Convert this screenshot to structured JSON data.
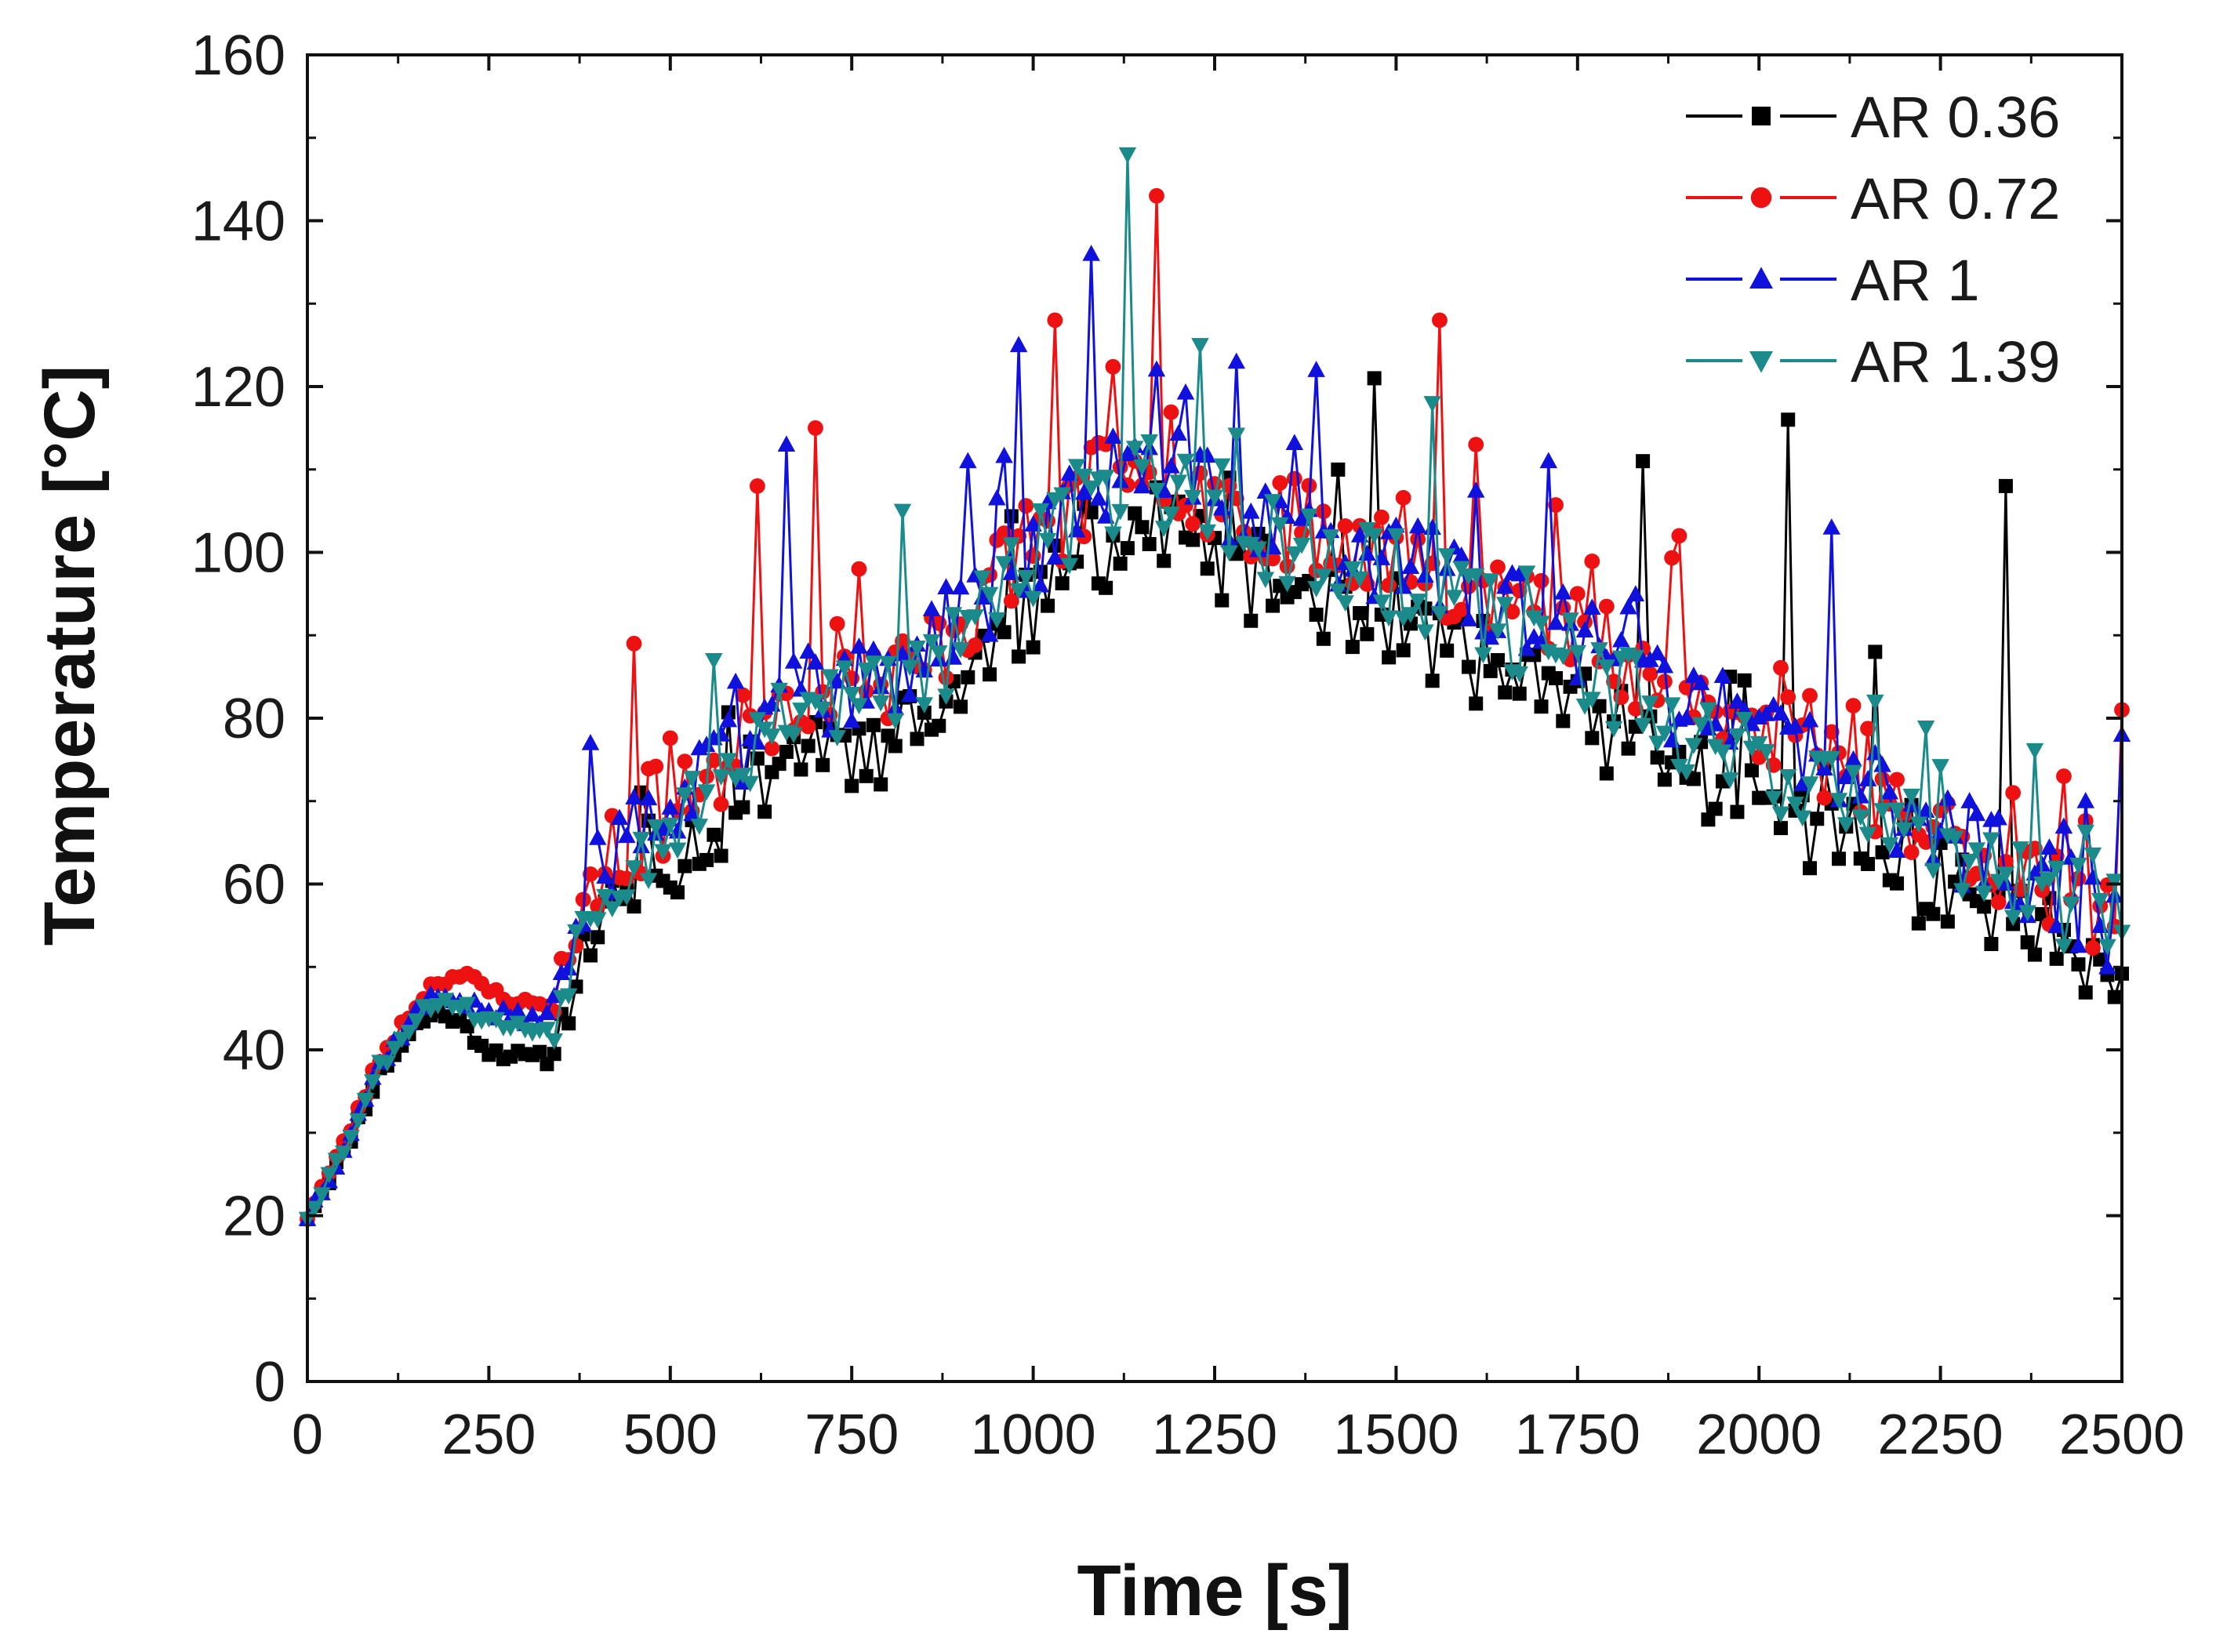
{
  "chart_data": {
    "type": "line",
    "title": "",
    "xlabel": "Time [s]",
    "ylabel": "Temperature [°C]",
    "xlim": [
      0,
      2500
    ],
    "ylim": [
      0,
      160
    ],
    "xticks": [
      0,
      250,
      500,
      750,
      1000,
      1250,
      1500,
      1750,
      2000,
      2250,
      2500
    ],
    "yticks": [
      0,
      20,
      40,
      60,
      80,
      100,
      120,
      140,
      160
    ],
    "xtick_labels": [
      "0",
      "250",
      "500",
      "750",
      "1000",
      "1250",
      "1500",
      "1750",
      "2000",
      "2250",
      "2500"
    ],
    "ytick_labels": [
      "0",
      "20",
      "40",
      "60",
      "80",
      "100",
      "120",
      "140",
      "160"
    ],
    "grid": false,
    "legend_position": "top-right",
    "sample_interval_s": 10,
    "trend": {
      "x": [
        0,
        50,
        100,
        150,
        175,
        200,
        250,
        300,
        330,
        345,
        375,
        420,
        500,
        550,
        600,
        650,
        700,
        750,
        800,
        850,
        900,
        950,
        1000,
        1050,
        1100,
        1150,
        1200,
        1250,
        1300,
        1400,
        1500,
        1600,
        1700,
        1800,
        1900,
        2000,
        2100,
        2200,
        2300,
        2400,
        2500
      ],
      "y": [
        20,
        28,
        38,
        44,
        46,
        46,
        44,
        43,
        43,
        45,
        55,
        62,
        68,
        71,
        76,
        81,
        83,
        82,
        83,
        85,
        90,
        95,
        99,
        103,
        107,
        109,
        107,
        104,
        102,
        100,
        97,
        93,
        89,
        84,
        79,
        75,
        71,
        66,
        62,
        58,
        52
      ]
    },
    "series": [
      {
        "name": "AR 0.36",
        "color": "#000000",
        "marker": "square",
        "offset": [
          [
            0,
            0
          ],
          [
            150,
            -1
          ],
          [
            200,
            -2
          ],
          [
            250,
            -4
          ],
          [
            340,
            -4
          ],
          [
            400,
            -4
          ],
          [
            800,
            -6
          ],
          [
            1100,
            -6
          ],
          [
            1300,
            -5
          ],
          [
            1700,
            -6
          ],
          [
            2000,
            -5
          ],
          [
            2500,
            -4
          ]
        ],
        "noise_seed": 11,
        "spikes": [
          [
            1465,
            121
          ],
          [
            1835,
            111
          ],
          [
            2040,
            116
          ],
          [
            2335,
            108
          ],
          [
            2160,
            88
          ],
          [
            1960,
            85
          ]
        ]
      },
      {
        "name": "AR 0.72",
        "color": "#ee1111",
        "marker": "circle",
        "offset": [
          [
            0,
            0
          ],
          [
            150,
            1.5
          ],
          [
            220,
            3.5
          ],
          [
            300,
            2.5
          ],
          [
            340,
            2.5
          ],
          [
            400,
            1
          ],
          [
            1000,
            2
          ],
          [
            1500,
            3
          ],
          [
            1800,
            4
          ],
          [
            2000,
            3
          ],
          [
            2500,
            2
          ]
        ],
        "noise_seed": 23,
        "spikes": [
          [
            445,
            89
          ],
          [
            620,
            108
          ],
          [
            700,
            115
          ],
          [
            1030,
            128
          ],
          [
            1170,
            143
          ],
          [
            1560,
            128
          ],
          [
            1610,
            113
          ],
          [
            1885,
            102
          ],
          [
            2500,
            81
          ],
          [
            2415,
            73
          ],
          [
            2350,
            71
          ]
        ]
      },
      {
        "name": "AR 1",
        "color": "#1111dd",
        "marker": "triangle-up",
        "offset": [
          [
            0,
            0
          ],
          [
            150,
            0.5
          ],
          [
            250,
            0.5
          ],
          [
            340,
            1
          ],
          [
            800,
            1
          ],
          [
            1200,
            2
          ],
          [
            1600,
            2
          ],
          [
            2000,
            3
          ],
          [
            2500,
            2
          ]
        ],
        "noise_seed": 37,
        "spikes": [
          [
            385,
            77
          ],
          [
            660,
            113
          ],
          [
            910,
            111
          ],
          [
            975,
            125
          ],
          [
            1075,
            136
          ],
          [
            1280,
            123
          ],
          [
            1390,
            122
          ],
          [
            1705,
            111
          ],
          [
            2095,
            103
          ],
          [
            2500,
            78
          ],
          [
            2445,
            70
          ]
        ]
      },
      {
        "name": "AR 1.39",
        "color": "#1a8a8a",
        "marker": "triangle-down",
        "offset": [
          [
            0,
            0
          ],
          [
            150,
            0
          ],
          [
            250,
            -0.5
          ],
          [
            340,
            -0.5
          ],
          [
            800,
            0
          ],
          [
            1200,
            0
          ],
          [
            1600,
            0
          ],
          [
            2000,
            0
          ],
          [
            2500,
            0
          ]
        ],
        "noise_seed": 53,
        "spikes": [
          [
            560,
            87
          ],
          [
            815,
            105
          ],
          [
            1125,
            148
          ],
          [
            1225,
            125
          ],
          [
            1545,
            118
          ],
          [
            2155,
            82
          ]
        ]
      }
    ]
  }
}
